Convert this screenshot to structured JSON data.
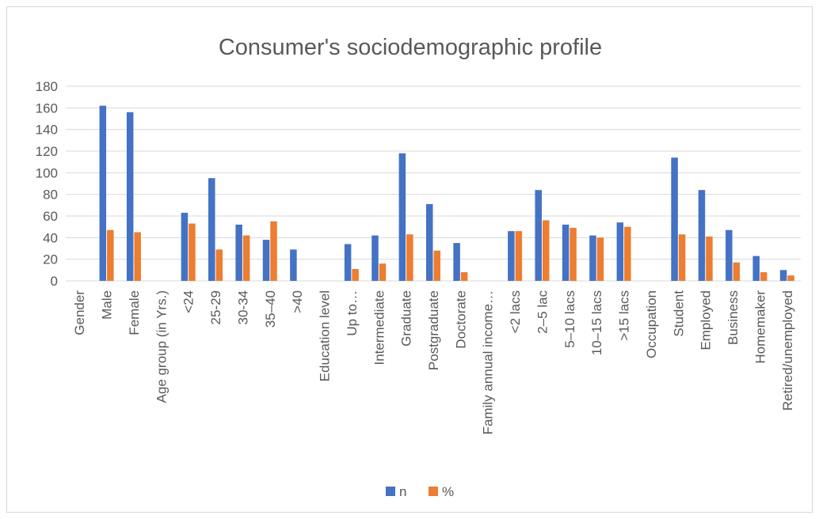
{
  "chart_data": {
    "type": "bar",
    "title": "Consumer's sociodemographic profile",
    "xlabel": "",
    "ylabel": "",
    "ylim": [
      0,
      180
    ],
    "yticks": [
      0,
      20,
      40,
      60,
      80,
      100,
      120,
      140,
      160,
      180
    ],
    "grid": true,
    "legend_position": "bottom",
    "categories": [
      "Gender",
      "Male",
      "Female",
      "Age group (in Yrs.)",
      "<24",
      "25-29",
      "30-34",
      "35–40",
      ">40",
      "Education level",
      "Up to…",
      "Intermediate",
      "Graduate",
      "Postgraduate",
      "Doctorate",
      "Family annual income…",
      "<2 lacs",
      "2–5 lac",
      "5–10 lacs",
      "10–15 lacs",
      ">15 lacs",
      "Occupation",
      "Student",
      "Employed",
      "Business",
      "Homemaker",
      "Retired/unemployed"
    ],
    "series": [
      {
        "name": "n",
        "color": "#4472c4",
        "values": [
          null,
          162,
          156,
          null,
          63,
          95,
          52,
          38,
          29,
          null,
          34,
          42,
          118,
          71,
          35,
          null,
          46,
          84,
          52,
          42,
          54,
          null,
          114,
          84,
          47,
          23,
          10
        ]
      },
      {
        "name": "%",
        "color": "#ed7d31",
        "values": [
          null,
          47,
          45,
          null,
          53,
          29,
          42,
          55,
          null,
          null,
          11,
          16,
          43,
          28,
          8,
          null,
          46,
          56,
          49,
          40,
          50,
          null,
          43,
          41,
          17,
          8,
          5
        ]
      }
    ]
  }
}
